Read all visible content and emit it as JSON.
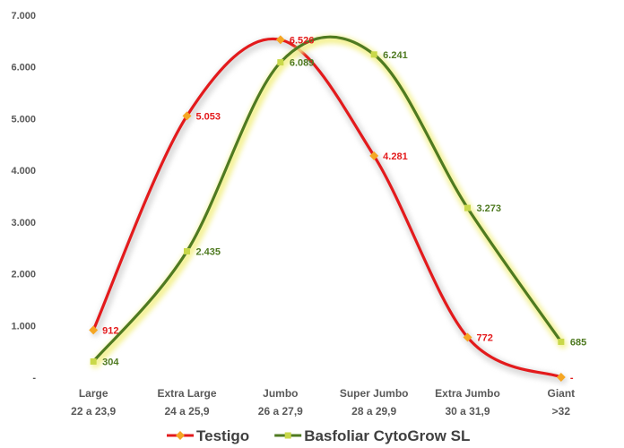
{
  "chart_data": {
    "type": "line",
    "categories": [
      [
        "Large",
        "22 a 23,9"
      ],
      [
        "Extra Large",
        "24 a 25,9"
      ],
      [
        "Jumbo",
        "26 a 27,9"
      ],
      [
        "Super Jumbo",
        "28 a 29,9"
      ],
      [
        "Extra Jumbo",
        "30 a 31,9"
      ],
      [
        "Giant",
        ">32"
      ]
    ],
    "series": [
      {
        "name": "Testigo",
        "values": [
          912,
          5053,
          6526,
          4281,
          772,
          0
        ],
        "labels": [
          "912",
          "5.053",
          "6.526",
          "4.281",
          "772",
          "-"
        ],
        "color": "#e31a1c",
        "marker_color": "#f5a623"
      },
      {
        "name": "Basfoliar CytoGrow SL",
        "values": [
          304,
          2435,
          6089,
          6241,
          3273,
          685
        ],
        "labels": [
          "304",
          "2.435",
          "6.089",
          "6.241",
          "3.273",
          "685"
        ],
        "color": "#4f7a21",
        "marker_color": "#c9d84a"
      }
    ],
    "yticks": [
      {
        "value": 0,
        "label": "-"
      },
      {
        "value": 1000,
        "label": "1.000"
      },
      {
        "value": 2000,
        "label": "2.000"
      },
      {
        "value": 3000,
        "label": "3.000"
      },
      {
        "value": 4000,
        "label": "4.000"
      },
      {
        "value": 5000,
        "label": "5.000"
      },
      {
        "value": 6000,
        "label": "6.000"
      },
      {
        "value": 7000,
        "label": "7.000"
      }
    ],
    "ylim": [
      0,
      7000
    ],
    "grid": false,
    "smooth": true,
    "legend_position": "bottom",
    "title": "",
    "xlabel": "",
    "ylabel": ""
  }
}
